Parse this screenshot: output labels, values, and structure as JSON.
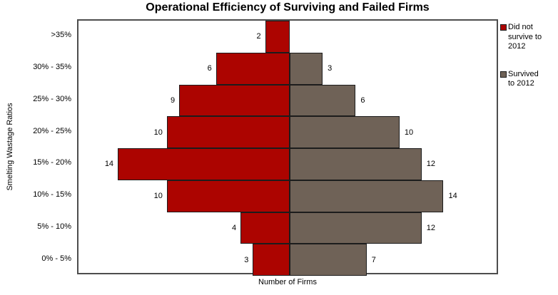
{
  "header": {
    "title": "Operational Efficiency of Surviving and Failed Firms"
  },
  "axes": {
    "x_title": "Number of Firms",
    "y_title": "Smelting Wastage Ratios"
  },
  "legend": {
    "position": "right",
    "items": [
      {
        "label": "Did not survive to 2012",
        "color": "#AC0400"
      },
      {
        "label": "Survived to 2012",
        "color": "#6F6257"
      }
    ]
  },
  "chart_data": {
    "type": "bar",
    "subtype": "population-pyramid",
    "title": "Operational Efficiency of Surviving and Failed Firms",
    "xlabel": "Number of Firms",
    "ylabel": "Smelting Wastage Ratios",
    "categories": [
      ">35%",
      "30% - 35%",
      "25% - 30%",
      "20% - 25%",
      "15% - 20%",
      "10% - 15%",
      "5% - 10%",
      "0% - 5%"
    ],
    "series": [
      {
        "name": "Did not survive to 2012",
        "side": "left",
        "color": "#AC0400",
        "values": [
          2,
          6,
          9,
          10,
          14,
          10,
          4,
          3
        ]
      },
      {
        "name": "Survived to 2012",
        "side": "right",
        "color": "#6F6257",
        "values": [
          null,
          3,
          6,
          10,
          12,
          14,
          12,
          7
        ]
      }
    ],
    "axis_hints": {
      "left_half_max": 17.2,
      "right_half_max": 19.1,
      "grid": false,
      "data_labels": "outside-end",
      "legend_position": "right"
    }
  },
  "style_colors": {
    "bar_border": "#1c1c1c",
    "plot_border": "#4d4d4d",
    "failed_fill": "#AC0400",
    "survived_fill": "#6F6257"
  }
}
